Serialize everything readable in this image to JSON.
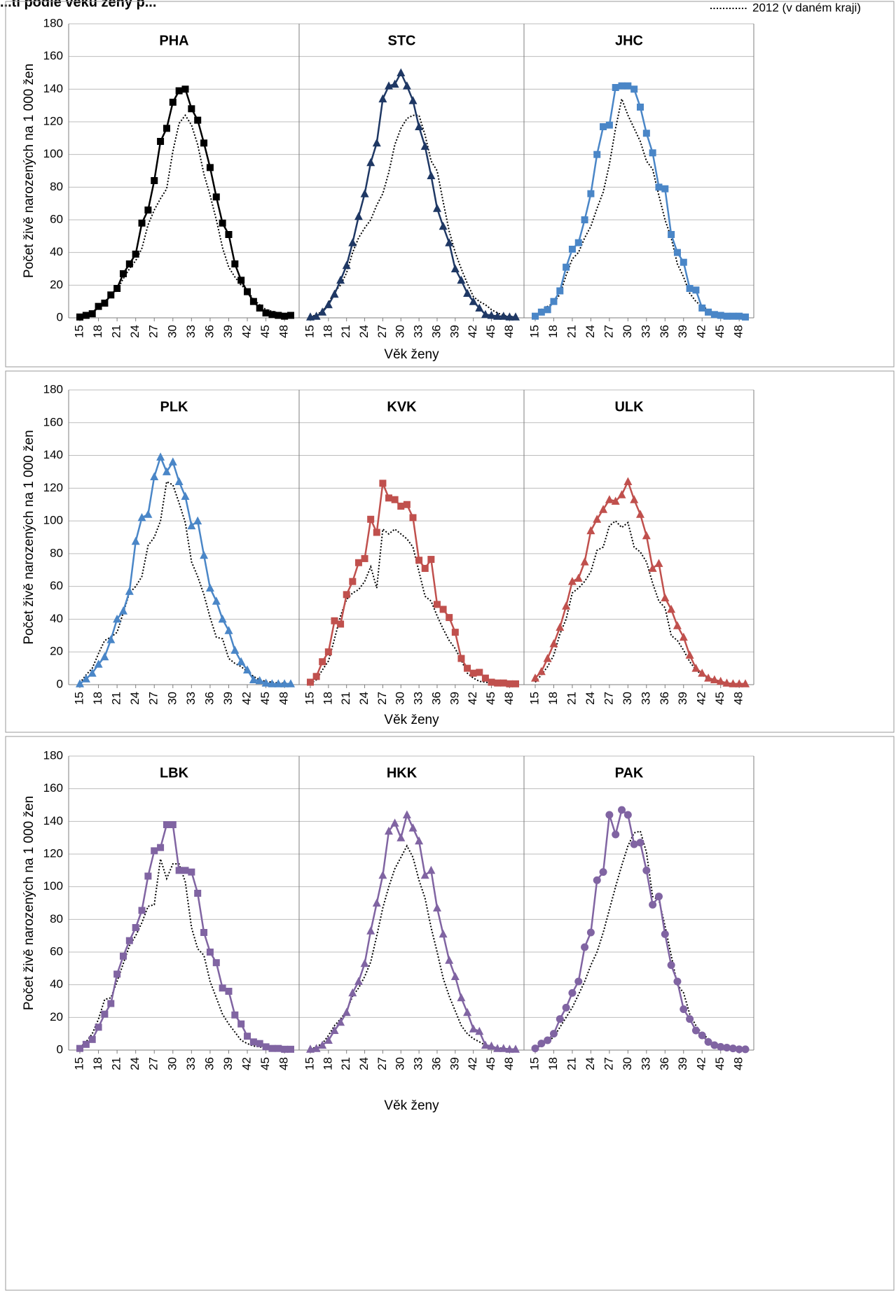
{
  "header": {
    "title_fragment": "...ti podle věku ženy p..."
  },
  "legend": {
    "reference_label": "2012 (v daném kraji)"
  },
  "chart_data": {
    "type": "line",
    "xlabel": "Věk ženy",
    "ylabel": "Počet živě narozených na 1 000 žen",
    "ylim": [
      0,
      180
    ],
    "yticks": [
      0,
      20,
      40,
      60,
      80,
      100,
      120,
      140,
      160,
      180
    ],
    "xticks": [
      15,
      18,
      21,
      24,
      27,
      30,
      33,
      36,
      39,
      42,
      45,
      48
    ],
    "ages": [
      15,
      16,
      17,
      18,
      19,
      20,
      21,
      22,
      23,
      24,
      25,
      26,
      27,
      28,
      29,
      30,
      31,
      32,
      33,
      34,
      35,
      36,
      37,
      38,
      39,
      40,
      41,
      42,
      43,
      44,
      45,
      46,
      47,
      48,
      49
    ],
    "grid": "horizontal",
    "legend_position": "top-right",
    "rows": [
      {
        "panels": [
          {
            "region": "PHA",
            "color": "#000000",
            "marker": "square",
            "values": [
              0.5,
              1.5,
              2.5,
              7,
              9,
              14,
              18,
              27,
              33,
              39,
              58,
              66,
              84,
              108,
              116,
              132,
              139,
              140,
              128,
              121,
              107,
              92,
              74,
              58,
              51,
              33,
              23,
              16,
              10,
              6,
              3,
              2,
              1.5,
              1,
              1.5
            ],
            "reference": [
              0.5,
              1.5,
              3.5,
              6.5,
              10,
              13.5,
              17,
              24,
              30,
              35,
              42.5,
              57,
              66,
              73,
              79,
              102,
              119,
              124,
              118,
              106,
              88,
              75,
              60,
              43,
              31,
              25,
              20,
              17,
              11,
              8,
              5,
              4,
              3,
              2,
              1.5
            ]
          },
          {
            "region": "STC",
            "color": "#1F3864",
            "marker": "triangle",
            "values": [
              0.5,
              1,
              3.5,
              8,
              14.5,
              23,
              32,
              46,
              62,
              76,
              95,
              107,
              134,
              142,
              143,
              150,
              142,
              133,
              117,
              105,
              87,
              67,
              56,
              46,
              30,
              23,
              15,
              10,
              6,
              2,
              1.5,
              1,
              1,
              0.5,
              0.5
            ],
            "reference": [
              0.3,
              2,
              4,
              9,
              16,
              20,
              27.5,
              40,
              49,
              55,
              60,
              69,
              76,
              89,
              106,
              116,
              122,
              124,
              124,
              112,
              96,
              90,
              71,
              53,
              40,
              30,
              21,
              13,
              10,
              8,
              5,
              3,
              1.5,
              1,
              0.5
            ]
          },
          {
            "region": "JHC",
            "color": "#4A86C7",
            "marker": "square",
            "values": [
              1,
              3.5,
              5,
              10,
              16.5,
              31,
              42,
              46,
              60,
              76,
              100,
              117,
              118,
              141,
              142,
              142,
              140,
              129,
              113,
              101,
              80,
              79,
              51,
              40,
              34,
              18,
              17,
              6,
              3.5,
              2,
              1.5,
              1,
              1,
              1,
              0.5
            ],
            "reference": [
              0.5,
              5,
              7,
              9,
              14.5,
              26,
              36,
              40,
              49,
              56,
              67,
              77,
              94,
              116,
              134,
              124,
              116,
              108,
              96,
              91,
              75,
              60,
              49,
              33,
              25,
              15,
              10,
              7,
              5,
              3,
              2,
              1.5,
              1,
              0.5,
              0.5
            ]
          }
        ]
      },
      {
        "panels": [
          {
            "region": "PLK",
            "color": "#4A86C7",
            "marker": "triangle",
            "values": [
              0.5,
              3.5,
              7,
              12.5,
              17,
              27.5,
              40,
              45,
              57,
              87.5,
              102,
              104,
              127,
              139,
              130,
              136,
              124,
              115,
              97,
              100,
              79,
              59,
              51,
              40,
              33,
              21,
              14,
              9,
              3,
              2.5,
              1,
              0.5,
              0.5,
              0.5,
              0.5
            ],
            "reference": [
              1,
              6,
              10,
              19,
              27,
              29,
              32,
              44,
              56,
              60,
              66,
              85,
              90,
              100,
              124,
              122,
              111,
              99,
              75,
              66,
              55,
              41,
              29,
              28,
              16,
              13,
              11,
              8,
              5,
              3,
              2,
              1.5,
              1,
              1,
              0.5
            ]
          },
          {
            "region": "KVK",
            "color": "#C0504D",
            "marker": "square",
            "values": [
              1.5,
              5,
              14,
              20,
              39,
              37,
              55,
              63,
              74.5,
              77,
              101,
              93,
              123,
              114,
              113,
              109,
              110,
              102,
              76,
              71,
              76.5,
              49,
              46,
              41,
              32,
              16,
              10,
              7,
              7.5,
              4,
              1.5,
              1,
              1,
              0.5,
              0.5
            ],
            "reference": [
              0.5,
              3,
              9,
              14.5,
              28,
              42,
              52,
              56,
              58,
              63,
              72,
              59,
              95,
              92,
              95,
              92,
              89,
              84,
              69,
              54,
              51,
              42,
              34,
              27,
              22,
              15,
              7,
              4,
              2,
              1.5,
              1,
              0.5,
              0.5,
              0.5,
              0.5
            ]
          },
          {
            "region": "ULK",
            "color": "#C0504D",
            "marker": "triangle",
            "values": [
              4,
              8,
              16,
              25,
              35,
              48,
              63,
              65,
              75,
              94,
              101,
              107,
              113,
              112,
              116,
              124,
              113,
              104,
              91,
              71,
              74,
              53,
              46,
              36,
              29,
              18,
              10,
              7,
              4,
              3,
              2,
              1,
              0.5,
              0.5,
              0.5
            ],
            "reference": [
              1.5,
              6,
              11,
              18,
              31,
              40,
              56,
              59,
              63,
              69,
              82,
              84,
              97,
              100,
              96,
              99,
              84,
              81,
              75,
              62,
              51,
              47,
              30,
              27,
              21,
              14,
              9,
              6,
              3.5,
              2.5,
              1.5,
              1,
              0.5,
              0.5,
              0.5
            ]
          }
        ]
      },
      {
        "panels": [
          {
            "region": "LBK",
            "color": "#8064A2",
            "marker": "square",
            "values": [
              1,
              3.5,
              6.5,
              14,
              22,
              28.5,
              46.5,
              57.5,
              67,
              75,
              85.5,
              106.5,
              122,
              124,
              138,
              138,
              110,
              110,
              109,
              96,
              72,
              60,
              53.5,
              38,
              36,
              21.5,
              16,
              8.5,
              5,
              4,
              2,
              1,
              1,
              0.5,
              0.5
            ],
            "reference": [
              1.5,
              5,
              10,
              19,
              31,
              32,
              42,
              53,
              64,
              70,
              78,
              88,
              89,
              117,
              105,
              114,
              114,
              103,
              75,
              62,
              58,
              42,
              32,
              22,
              16,
              11,
              6,
              4,
              2.5,
              2,
              1,
              1,
              0.5,
              0.5,
              0.5
            ]
          },
          {
            "region": "HKK",
            "color": "#8064A2",
            "marker": "triangle",
            "values": [
              0.5,
              1,
              3,
              6,
              12,
              17,
              23,
              35,
              42,
              53,
              73,
              90,
              107,
              134,
              139,
              130,
              144,
              136,
              128,
              107,
              110,
              87,
              71,
              55,
              45,
              32,
              23,
              13,
              11.5,
              3,
              2.5,
              1,
              1,
              0.5,
              0.5
            ],
            "reference": [
              0.3,
              2,
              4,
              9,
              15,
              19,
              24,
              33,
              38,
              45,
              54,
              70,
              87,
              100,
              111,
              118,
              125,
              118,
              104,
              93,
              75,
              60,
              44,
              33,
              24,
              15,
              10,
              7,
              5,
              3,
              2,
              1.5,
              1,
              0.5,
              0.5
            ]
          },
          {
            "region": "PAK",
            "color": "#8064A2",
            "marker": "circle",
            "values": [
              1,
              4,
              6,
              10,
              19,
              26,
              35,
              42,
              63,
              72,
              104,
              109,
              144,
              132,
              147,
              144,
              126,
              127,
              110,
              89,
              94,
              71,
              52,
              42,
              25,
              19,
              12,
              9,
              5,
              3,
              2,
              1.5,
              1,
              0.5,
              0.5
            ],
            "reference": [
              1,
              3,
              5,
              8,
              14,
              20,
              26,
              34,
              42,
              52,
              60,
              72,
              86,
              100,
              113,
              125,
              133,
              134,
              121,
              94,
              92,
              76,
              58,
              40,
              35,
              22,
              15,
              10,
              7,
              4,
              2.5,
              2,
              1,
              1,
              0.5
            ]
          }
        ]
      }
    ]
  }
}
